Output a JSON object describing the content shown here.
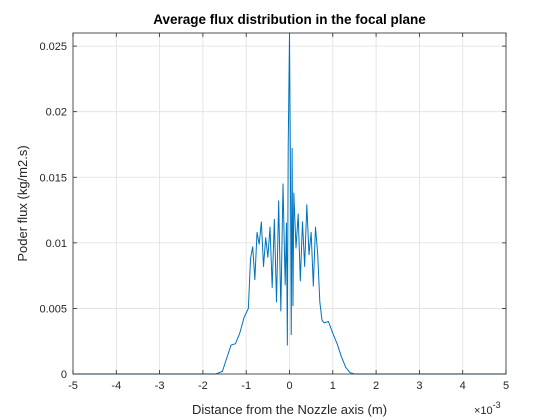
{
  "chart_data": {
    "type": "line",
    "title": "Average flux distribution in the focal plane",
    "xlabel": "Distance from the Nozzle axis (m)",
    "ylabel": "Poder flux (kg/m2.s)",
    "x_multiplier": "×10",
    "x_multiplier_exp": "-3",
    "xlim": [
      -5,
      5
    ],
    "ylim": [
      0,
      0.026
    ],
    "grid": true,
    "x_ticks": [
      -5,
      -4,
      -3,
      -2,
      -1,
      0,
      1,
      2,
      3,
      4,
      5
    ],
    "x_tick_labels": [
      "-5",
      "-4",
      "-3",
      "-2",
      "-1",
      "0",
      "1",
      "2",
      "3",
      "4",
      "5"
    ],
    "y_ticks": [
      0,
      0.005,
      0.01,
      0.015,
      0.02,
      0.025
    ],
    "y_tick_labels": [
      "0",
      "0.005",
      "0.01",
      "0.015",
      "0.02",
      "0.025"
    ],
    "line_color": "#0072BD",
    "series": [
      {
        "x": [
          -5,
          -1.7,
          -1.55,
          -1.45,
          -1.35,
          -1.25,
          -1.15,
          -1.05,
          -0.95,
          -0.9,
          -0.85,
          -0.8,
          -0.75,
          -0.7,
          -0.65,
          -0.6,
          -0.55,
          -0.5,
          -0.45,
          -0.4,
          -0.35,
          -0.3,
          -0.25,
          -0.2,
          -0.15,
          -0.1,
          -0.07,
          -0.05,
          -0.03,
          0,
          0.02,
          0.04,
          0.06,
          0.08,
          0.1,
          0.15,
          0.2,
          0.25,
          0.3,
          0.35,
          0.4,
          0.45,
          0.5,
          0.55,
          0.6,
          0.65,
          0.7,
          0.75,
          0.8,
          0.9,
          1.0,
          1.1,
          1.2,
          1.3,
          1.4,
          1.5,
          1.6,
          1.7,
          5
        ],
        "values": [
          0,
          0,
          0.0002,
          0.0012,
          0.0022,
          0.0023,
          0.0031,
          0.0043,
          0.005,
          0.0088,
          0.0097,
          0.0072,
          0.0108,
          0.0099,
          0.0116,
          0.0082,
          0.0104,
          0.0089,
          0.0112,
          0.0066,
          0.0118,
          0.0055,
          0.0132,
          0.0048,
          0.0145,
          0.0068,
          0.0115,
          0.0022,
          0.0172,
          0.026,
          0.0163,
          0.003,
          0.0172,
          0.0052,
          0.0138,
          0.0096,
          0.0122,
          0.0071,
          0.0116,
          0.0082,
          0.0129,
          0.0091,
          0.0108,
          0.0067,
          0.0112,
          0.0092,
          0.0055,
          0.0041,
          0.0039,
          0.004,
          0.0031,
          0.0023,
          0.0013,
          0.0005,
          0.0001,
          0,
          0,
          0,
          0
        ]
      }
    ]
  }
}
